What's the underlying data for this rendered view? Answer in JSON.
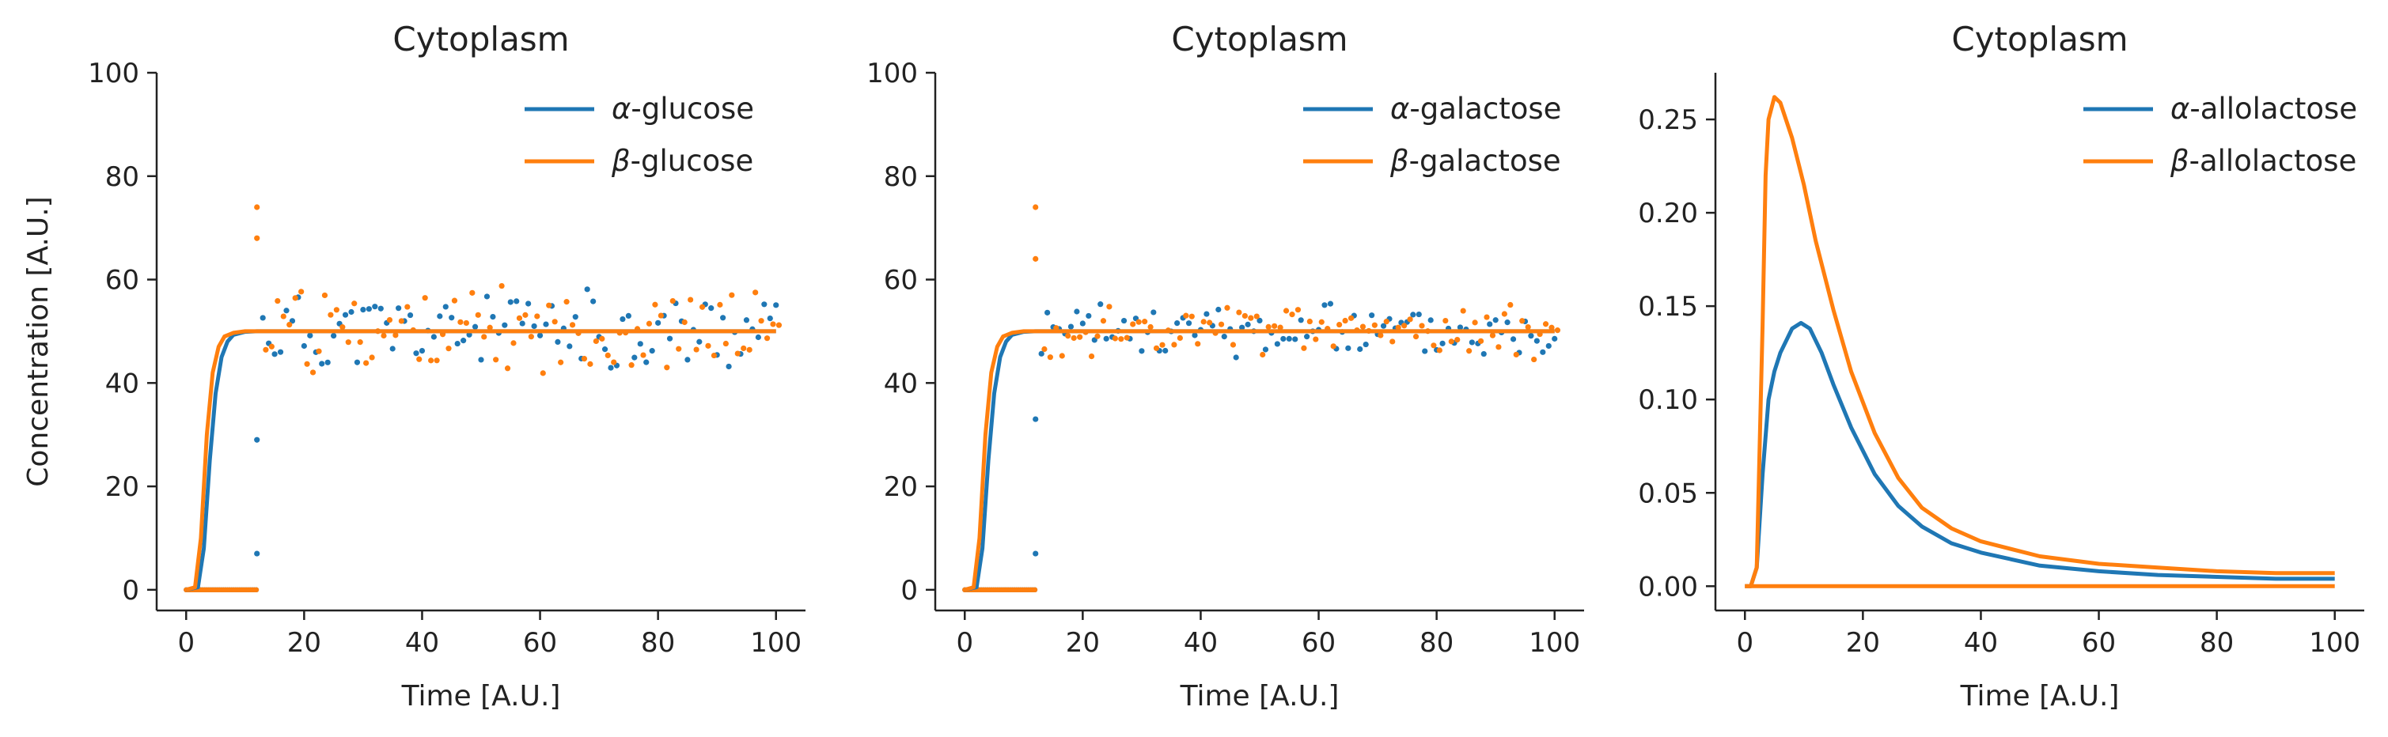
{
  "colors": {
    "alpha": "#1f77b4",
    "beta": "#ff7f0e",
    "axis": "#222222"
  },
  "chart_data": [
    {
      "type": "line",
      "title": "Cytoplasm",
      "xlabel": "Time [A.U.]",
      "ylabel": "Concentration [A.U.]",
      "xlim": [
        -5,
        105
      ],
      "ylim": [
        -4,
        100
      ],
      "xticks": [
        0,
        20,
        40,
        60,
        80,
        100
      ],
      "yticks": [
        0,
        20,
        40,
        60,
        80,
        100
      ],
      "ytick_labels": [
        "0",
        "20",
        "40",
        "60",
        "80",
        "100"
      ],
      "legend_position": "top-right",
      "grid": false,
      "series": [
        {
          "name": "α-glucose",
          "legend_italic": "α",
          "legend_rest": "-glucose",
          "color": "#1f77b4",
          "x": [
            0,
            2,
            3,
            4,
            5,
            6,
            7,
            8,
            10,
            12,
            15,
            100
          ],
          "y": [
            0,
            0.5,
            8,
            25,
            38,
            45,
            48,
            49.3,
            49.9,
            50,
            50,
            50
          ]
        },
        {
          "name": "β-glucose",
          "legend_italic": "β",
          "legend_rest": "-glucose",
          "color": "#ff7f0e",
          "x": [
            0,
            1.5,
            2.5,
            3.5,
            4.5,
            5.5,
            6.5,
            8,
            10,
            12,
            15,
            100
          ],
          "y": [
            0,
            0.5,
            10,
            30,
            42,
            47,
            49,
            49.7,
            50,
            50,
            50,
            50
          ]
        }
      ],
      "noisy_samples": {
        "xmin": 12,
        "xmax": 100,
        "mean": 50,
        "spread": 9,
        "seed": 11,
        "spikes": [
          {
            "x": 12,
            "y": 74,
            "series": 1
          },
          {
            "x": 12,
            "y": 68,
            "series": 1
          },
          {
            "x": 12,
            "y": 29,
            "series": 0
          },
          {
            "x": 12,
            "y": 7,
            "series": 0
          }
        ]
      },
      "zero_segment": [
        0,
        12
      ]
    },
    {
      "type": "line",
      "title": "Cytoplasm",
      "xlabel": "Time [A.U.]",
      "ylabel": "",
      "xlim": [
        -5,
        105
      ],
      "ylim": [
        -4,
        100
      ],
      "xticks": [
        0,
        20,
        40,
        60,
        80,
        100
      ],
      "yticks": [
        0,
        20,
        40,
        60,
        80,
        100
      ],
      "ytick_labels": [
        "0",
        "20",
        "40",
        "60",
        "80",
        "100"
      ],
      "legend_position": "top-right",
      "grid": false,
      "series": [
        {
          "name": "α-galactose",
          "legend_italic": "α",
          "legend_rest": "-galactose",
          "color": "#1f77b4",
          "x": [
            0,
            2,
            3,
            4,
            5,
            6,
            7,
            8,
            10,
            12,
            15,
            100
          ],
          "y": [
            0,
            0.5,
            8,
            25,
            38,
            45,
            48,
            49.3,
            49.9,
            50,
            50,
            50
          ]
        },
        {
          "name": "β-galactose",
          "legend_italic": "β",
          "legend_rest": "-galactose",
          "color": "#ff7f0e",
          "x": [
            0,
            1.5,
            2.5,
            3.5,
            4.5,
            5.5,
            6.5,
            8,
            10,
            12,
            15,
            100
          ],
          "y": [
            0,
            0.5,
            10,
            30,
            42,
            47,
            49,
            49.7,
            50,
            50,
            50,
            50
          ]
        }
      ],
      "noisy_samples": {
        "xmin": 12,
        "xmax": 100,
        "mean": 50,
        "spread": 6,
        "seed": 23,
        "spikes": [
          {
            "x": 12,
            "y": 74,
            "series": 1
          },
          {
            "x": 12,
            "y": 64,
            "series": 1
          },
          {
            "x": 12,
            "y": 33,
            "series": 0
          },
          {
            "x": 12,
            "y": 7,
            "series": 0
          }
        ]
      },
      "zero_segment": [
        0,
        12
      ]
    },
    {
      "type": "line",
      "title": "Cytoplasm",
      "xlabel": "Time [A.U.]",
      "ylabel": "",
      "xlim": [
        -5,
        105
      ],
      "ylim": [
        -0.013,
        0.275
      ],
      "xticks": [
        0,
        20,
        40,
        60,
        80,
        100
      ],
      "yticks": [
        0,
        0.05,
        0.1,
        0.15,
        0.2,
        0.25
      ],
      "ytick_labels": [
        "0.00",
        "0.05",
        "0.10",
        "0.15",
        "0.20",
        "0.25"
      ],
      "legend_position": "top-right",
      "grid": false,
      "series": [
        {
          "name": "α-allolactose",
          "legend_italic": "α",
          "legend_rest": "-allolactose",
          "color": "#1f77b4",
          "x": [
            0,
            1,
            2,
            3,
            4,
            5,
            6,
            8,
            9.5,
            11,
            13,
            15,
            18,
            22,
            26,
            30,
            35,
            40,
            50,
            60,
            70,
            80,
            90,
            100
          ],
          "y": [
            0,
            0,
            0.01,
            0.06,
            0.1,
            0.115,
            0.125,
            0.138,
            0.141,
            0.138,
            0.125,
            0.108,
            0.085,
            0.06,
            0.043,
            0.032,
            0.023,
            0.018,
            0.011,
            0.008,
            0.006,
            0.005,
            0.004,
            0.004
          ]
        },
        {
          "name": "β-allolactose",
          "legend_italic": "β",
          "legend_rest": "-allolactose",
          "color": "#ff7f0e",
          "x": [
            0,
            1,
            2,
            3,
            3.5,
            4,
            5,
            6,
            8,
            10,
            12,
            15,
            18,
            22,
            26,
            30,
            35,
            40,
            50,
            60,
            70,
            80,
            90,
            100
          ],
          "y": [
            0,
            0,
            0.01,
            0.14,
            0.22,
            0.25,
            0.262,
            0.259,
            0.24,
            0.215,
            0.185,
            0.148,
            0.115,
            0.082,
            0.058,
            0.042,
            0.031,
            0.024,
            0.016,
            0.012,
            0.01,
            0.008,
            0.007,
            0.007
          ]
        },
        {
          "name": "β-allolactose baseline",
          "legend_italic": "",
          "legend_rest": "",
          "color": "#ff7f0e",
          "x": [
            0,
            100
          ],
          "y": [
            0,
            0
          ]
        }
      ]
    }
  ]
}
